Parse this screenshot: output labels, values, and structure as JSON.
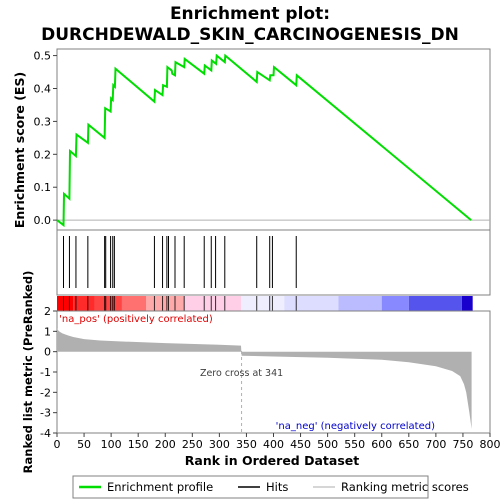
{
  "chart_data": {
    "type": "line",
    "title_line1": "Enrichment plot:",
    "title_line2": "DURCHDEWALD_SKIN_CARCINOGENESIS_DN",
    "xlabel": "Rank in Ordered Dataset",
    "xlim": [
      0,
      800
    ],
    "x_ticks": [
      0,
      50,
      100,
      150,
      200,
      250,
      300,
      350,
      400,
      450,
      500,
      550,
      600,
      650,
      700,
      750,
      800
    ],
    "es_panel": {
      "ylabel": "Enrichment score (ES)",
      "ylim": [
        -0.03,
        0.52
      ],
      "y_ticks": [
        0.0,
        0.1,
        0.2,
        0.3,
        0.4,
        0.5
      ],
      "y_tick_labels": [
        "0.0",
        "0.1",
        "0.2",
        "0.3",
        "0.4",
        "0.5"
      ],
      "series": [
        {
          "name": "Enrichment profile",
          "color": "#00dd00",
          "x": [
            0,
            12,
            13,
            23,
            24,
            35,
            36,
            57,
            58,
            88,
            89,
            99,
            100,
            103,
            104,
            107,
            108,
            180,
            181,
            195,
            196,
            203,
            204,
            212,
            213,
            218,
            219,
            235,
            236,
            272,
            273,
            285,
            286,
            294,
            295,
            310,
            311,
            369,
            370,
            393,
            394,
            400,
            401,
            442,
            443,
            765
          ],
          "y": [
            0.0,
            -0.015,
            0.08,
            0.065,
            0.21,
            0.195,
            0.26,
            0.235,
            0.29,
            0.25,
            0.34,
            0.33,
            0.37,
            0.365,
            0.41,
            0.405,
            0.46,
            0.36,
            0.395,
            0.38,
            0.41,
            0.405,
            0.465,
            0.455,
            0.445,
            0.44,
            0.48,
            0.465,
            0.49,
            0.445,
            0.47,
            0.455,
            0.485,
            0.475,
            0.5,
            0.48,
            0.5,
            0.42,
            0.45,
            0.425,
            0.44,
            0.44,
            0.465,
            0.41,
            0.44,
            0.0
          ]
        }
      ]
    },
    "hits_panel": {
      "name": "Hits",
      "positions": [
        12,
        23,
        35,
        57,
        88,
        90,
        99,
        103,
        106,
        180,
        195,
        203,
        206,
        218,
        235,
        272,
        285,
        293,
        310,
        369,
        393,
        398,
        442
      ]
    },
    "ranking_bar": {
      "segments": [
        {
          "from": 0,
          "to": 30,
          "color": "#ff0000"
        },
        {
          "from": 30,
          "to": 70,
          "color": "#ff2a2a"
        },
        {
          "from": 70,
          "to": 120,
          "color": "#ff4444"
        },
        {
          "from": 120,
          "to": 165,
          "color": "#ff7070"
        },
        {
          "from": 165,
          "to": 235,
          "color": "#ffaaaa"
        },
        {
          "from": 235,
          "to": 340,
          "color": "#ffcfe8"
        },
        {
          "from": 340,
          "to": 420,
          "color": "#eeeeff"
        },
        {
          "from": 420,
          "to": 520,
          "color": "#ddddff"
        },
        {
          "from": 520,
          "to": 600,
          "color": "#bbbbff"
        },
        {
          "from": 600,
          "to": 650,
          "color": "#8888ff"
        },
        {
          "from": 650,
          "to": 748,
          "color": "#5555ee"
        },
        {
          "from": 748,
          "to": 768,
          "color": "#1a00cc"
        }
      ]
    },
    "metric_panel": {
      "ylabel": "Ranked list metric (PreRanked)",
      "ylim": [
        -4,
        2
      ],
      "y_ticks": [
        -4,
        -3,
        -2,
        -1,
        0,
        1,
        2
      ],
      "y_tick_labels": [
        "-4",
        "-3",
        "-2",
        "-1",
        "0",
        "1",
        "2"
      ],
      "x": [
        0,
        2,
        5,
        10,
        20,
        30,
        50,
        80,
        120,
        200,
        300,
        340,
        341,
        400,
        500,
        600,
        650,
        700,
        730,
        745,
        752,
        756,
        759,
        762,
        764,
        766
      ],
      "y": [
        1.15,
        1.05,
        0.98,
        0.9,
        0.8,
        0.72,
        0.62,
        0.55,
        0.5,
        0.42,
        0.34,
        0.3,
        -0.2,
        -0.24,
        -0.3,
        -0.4,
        -0.52,
        -0.72,
        -0.95,
        -1.2,
        -1.6,
        -2.0,
        -2.5,
        -3.0,
        -3.4,
        -3.8
      ],
      "fill_color": "#b0b0b0",
      "zero_cross_position": 341,
      "zero_cross_label": "Zero cross at 341",
      "pos_label": "'na_pos' (positively correlated)",
      "neg_label": "'na_neg' (negatively correlated)",
      "pos_color": "#e00000",
      "neg_color": "#0000cc"
    },
    "legend": {
      "placement": "bottom",
      "entries": [
        {
          "label": "Enrichment profile",
          "kind": "line",
          "color": "#00dd00"
        },
        {
          "label": "Hits",
          "kind": "line",
          "color": "#000000"
        },
        {
          "label": "Ranking metric scores",
          "kind": "line",
          "color": "#c8c8c8"
        }
      ]
    }
  }
}
